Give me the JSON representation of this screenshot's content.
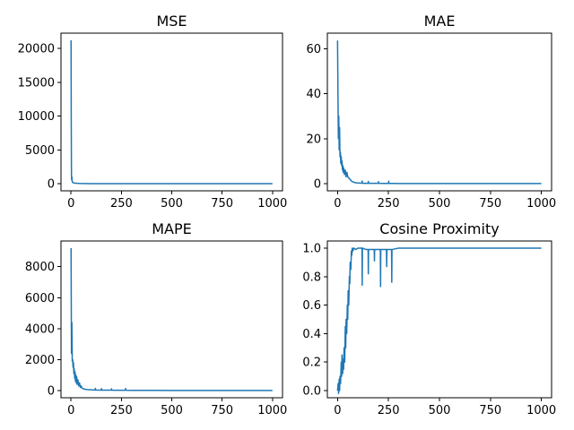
{
  "chart_data": [
    {
      "type": "line",
      "title": "MSE",
      "xlim": [
        -50,
        1050
      ],
      "ylim": [
        -1060,
        22260
      ],
      "xticks": [
        0,
        250,
        500,
        750,
        1000
      ],
      "yticks": [
        0,
        5000,
        10000,
        15000,
        20000
      ],
      "ytick_labels": [
        "0",
        "5000",
        "10000",
        "15000",
        "20000"
      ],
      "series": [
        {
          "color": "#1f77b4",
          "x": [
            0,
            1,
            2,
            3,
            4,
            5,
            6,
            8,
            10,
            15,
            20,
            30,
            40,
            60,
            100,
            200,
            400,
            600,
            800,
            1000
          ],
          "y": [
            21200,
            9000,
            1400,
            600,
            1000,
            500,
            300,
            200,
            150,
            100,
            80,
            50,
            30,
            15,
            8,
            5,
            3,
            2,
            2,
            2
          ]
        }
      ]
    },
    {
      "type": "line",
      "title": "MAE",
      "xlim": [
        -50,
        1050
      ],
      "ylim": [
        -3.2,
        66.9
      ],
      "xticks": [
        0,
        250,
        500,
        750,
        1000
      ],
      "yticks": [
        0,
        20,
        40,
        60
      ],
      "ytick_labels": [
        "0",
        "20",
        "40",
        "60"
      ],
      "series": [
        {
          "color": "#1f77b4",
          "x": [
            0,
            2,
            4,
            6,
            8,
            10,
            12,
            14,
            16,
            18,
            20,
            22,
            24,
            26,
            28,
            30,
            34,
            38,
            42,
            46,
            50,
            55,
            60,
            65,
            70,
            80,
            90,
            100,
            110,
            120,
            121,
            122,
            130,
            150,
            151,
            152,
            170,
            200,
            201,
            202,
            230,
            250,
            251,
            252,
            270,
            300,
            400,
            500,
            600,
            700,
            800,
            900,
            1000
          ],
          "y": [
            63.6,
            40,
            20,
            30,
            15,
            25,
            12,
            14,
            9,
            12,
            8,
            10,
            6,
            8,
            5,
            7,
            4,
            6,
            3,
            5,
            3,
            2.5,
            2,
            1.5,
            1,
            0.6,
            0.4,
            0.3,
            0.25,
            0.2,
            1.2,
            0.2,
            0.15,
            0.15,
            1,
            0.15,
            0.12,
            0.12,
            0.9,
            0.12,
            0.1,
            0.1,
            1.1,
            0.1,
            0.08,
            0.06,
            0.04,
            0.03,
            0.02,
            0.02,
            0.02,
            0.02,
            0.02
          ]
        }
      ]
    },
    {
      "type": "line",
      "title": "MAPE",
      "xlim": [
        -50,
        1050
      ],
      "ylim": [
        -460,
        9660
      ],
      "xticks": [
        0,
        250,
        500,
        750,
        1000
      ],
      "yticks": [
        0,
        2000,
        4000,
        6000,
        8000
      ],
      "ytick_labels": [
        "0",
        "2000",
        "4000",
        "6000",
        "8000"
      ],
      "series": [
        {
          "color": "#1f77b4",
          "x": [
            0,
            2,
            4,
            6,
            8,
            10,
            12,
            14,
            16,
            18,
            20,
            22,
            24,
            26,
            28,
            30,
            34,
            38,
            42,
            46,
            50,
            55,
            60,
            70,
            80,
            90,
            100,
            120,
            121,
            122,
            150,
            151,
            152,
            180,
            200,
            201,
            202,
            230,
            270,
            271,
            272,
            300,
            400,
            500,
            600,
            700,
            800,
            900,
            1000
          ],
          "y": [
            9200,
            2400,
            4400,
            1900,
            2000,
            1500,
            1800,
            1100,
            1400,
            800,
            1200,
            600,
            1000,
            500,
            900,
            400,
            700,
            300,
            500,
            200,
            300,
            150,
            120,
            90,
            70,
            60,
            50,
            40,
            150,
            40,
            35,
            130,
            35,
            30,
            28,
            120,
            28,
            25,
            22,
            140,
            22,
            20,
            15,
            12,
            10,
            10,
            10,
            10,
            10
          ]
        }
      ]
    },
    {
      "type": "line",
      "title": "Cosine Proximity",
      "xlim": [
        -50,
        1050
      ],
      "ylim": [
        -0.05,
        1.05
      ],
      "xticks": [
        0,
        250,
        500,
        750,
        1000
      ],
      "yticks": [
        0,
        0.2,
        0.4,
        0.6,
        0.8,
        1.0
      ],
      "ytick_labels": [
        "0.0",
        "0.2",
        "0.4",
        "0.6",
        "0.8",
        "1.0"
      ],
      "series": [
        {
          "color": "#1f77b4",
          "x": [
            0,
            3,
            5,
            8,
            10,
            12,
            15,
            18,
            20,
            22,
            25,
            28,
            30,
            32,
            35,
            38,
            40,
            42,
            45,
            48,
            50,
            52,
            55,
            58,
            60,
            62,
            65,
            68,
            70,
            72,
            75,
            80,
            90,
            100,
            110,
            120,
            121,
            122,
            140,
            150,
            151,
            152,
            170,
            180,
            181,
            182,
            200,
            210,
            211,
            212,
            230,
            240,
            241,
            242,
            260,
            265,
            266,
            267,
            300,
            400,
            500,
            600,
            700,
            800,
            900,
            1000
          ],
          "y": [
            0.0,
            0.05,
            -0.02,
            0.08,
            0.0,
            0.1,
            0.05,
            0.2,
            0.1,
            0.25,
            0.12,
            0.22,
            0.15,
            0.3,
            0.2,
            0.45,
            0.3,
            0.5,
            0.4,
            0.6,
            0.5,
            0.7,
            0.6,
            0.8,
            0.75,
            0.9,
            0.85,
            0.98,
            0.95,
            1.0,
            0.98,
            1.0,
            0.99,
            1.0,
            1.0,
            1.0,
            0.74,
            1.0,
            0.99,
            0.99,
            0.82,
            0.99,
            0.99,
            0.99,
            0.91,
            0.99,
            0.99,
            0.99,
            0.73,
            0.99,
            0.99,
            0.99,
            0.87,
            0.99,
            0.99,
            0.99,
            0.76,
            0.99,
            1.0,
            1.0,
            1.0,
            1.0,
            1.0,
            1.0,
            1.0,
            1.0
          ]
        }
      ]
    }
  ]
}
